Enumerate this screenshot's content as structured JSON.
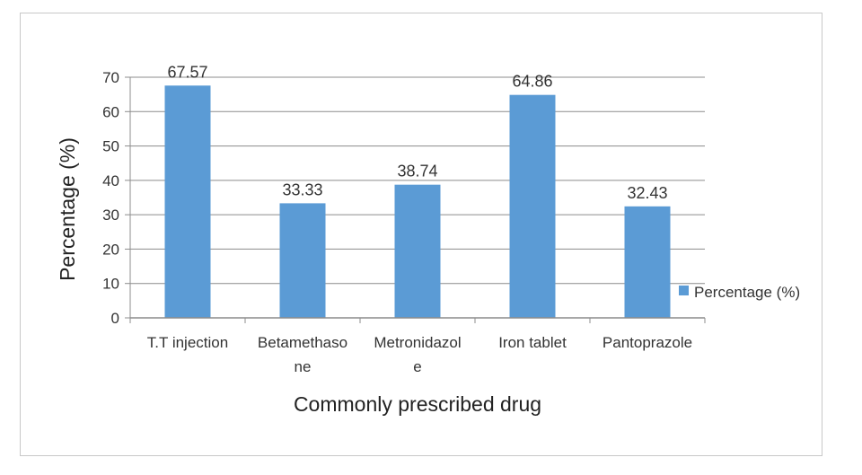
{
  "chart_data": {
    "type": "bar",
    "categories": [
      [
        "T.T injection"
      ],
      [
        "Betamethaso",
        "ne"
      ],
      [
        "Metronidazol",
        "e"
      ],
      [
        "Iron tablet"
      ],
      [
        "Pantoprazole"
      ]
    ],
    "values": [
      67.57,
      33.33,
      38.74,
      64.86,
      32.43
    ],
    "data_labels": [
      "67.57",
      "33.33",
      "38.74",
      "64.86",
      "32.43"
    ],
    "series": [
      {
        "name": "Percentage (%)",
        "values": [
          67.57,
          33.33,
          38.74,
          64.86,
          32.43
        ]
      }
    ],
    "xlabel": "Commonly prescribed drug",
    "ylabel": "Percentage (%)",
    "ylim": [
      0,
      70
    ],
    "yticks": [
      0,
      10,
      20,
      30,
      40,
      50,
      60,
      70
    ],
    "grid": true,
    "legend_position": "right",
    "bar_color": "#5b9bd5"
  }
}
